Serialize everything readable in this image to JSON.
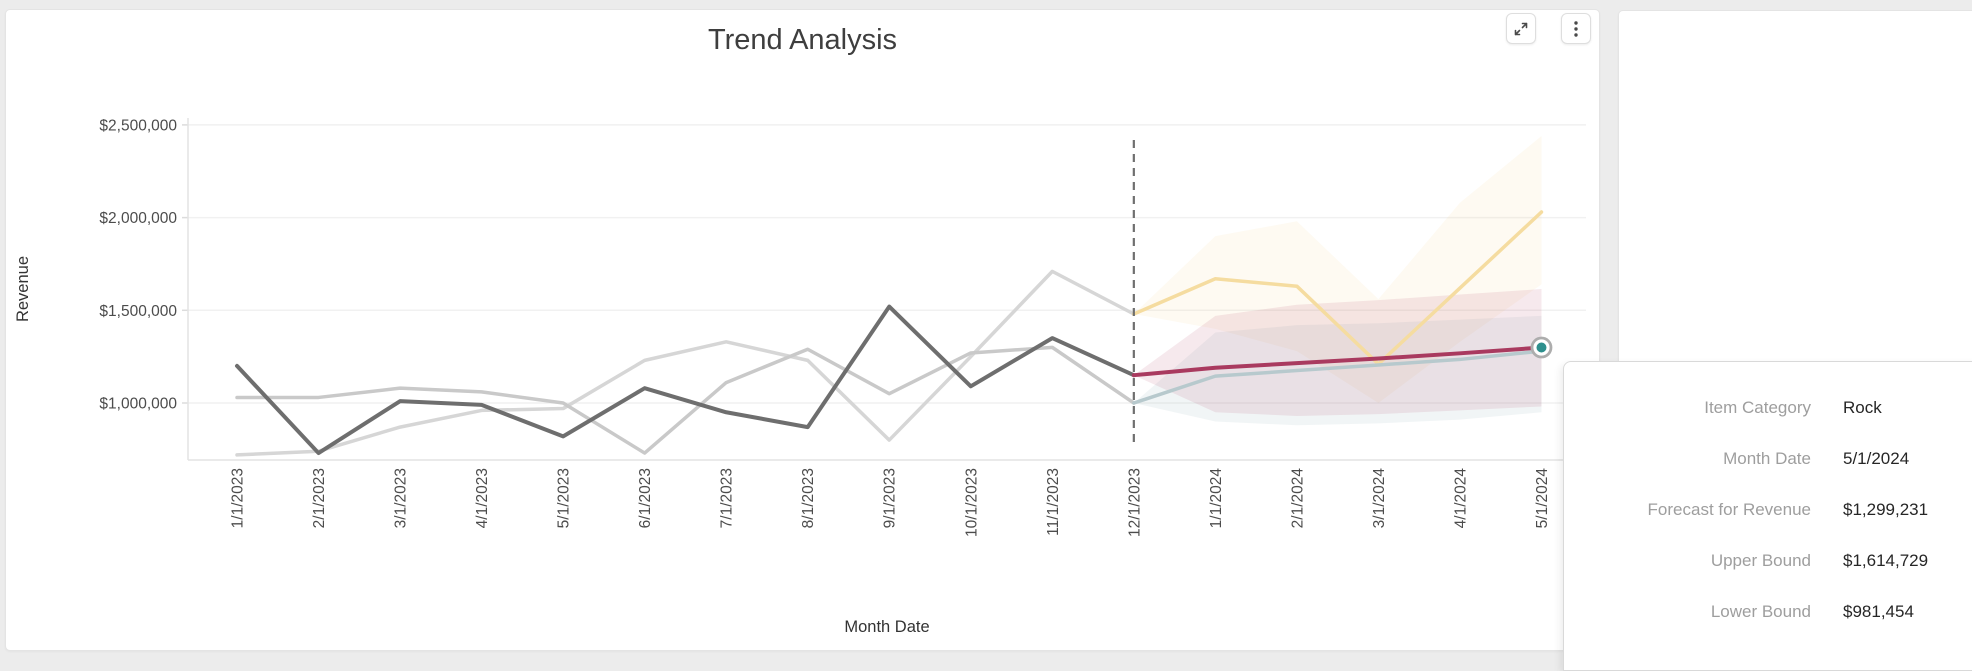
{
  "card": {
    "title": "Trend Analysis"
  },
  "chart_data": {
    "type": "line",
    "title": "Trend Analysis",
    "xlabel": "Month Date",
    "ylabel": "Revenue",
    "ylim": [
      650000,
      2550000
    ],
    "grid": "horizontal",
    "legend_position": "none",
    "x_categories": [
      "1/1/2023",
      "2/1/2023",
      "3/1/2023",
      "4/1/2023",
      "5/1/2023",
      "6/1/2023",
      "7/1/2023",
      "8/1/2023",
      "9/1/2023",
      "10/1/2023",
      "11/1/2023",
      "12/1/2023",
      "1/1/2024",
      "2/1/2024",
      "3/1/2024",
      "4/1/2024",
      "5/1/2024"
    ],
    "y_ticks": [
      {
        "value": 1000000,
        "label": "$1,000,000"
      },
      {
        "value": 1500000,
        "label": "$1,500,000"
      },
      {
        "value": 2000000,
        "label": "$2,000,000"
      },
      {
        "value": 2500000,
        "label": "$2,500,000"
      }
    ],
    "forecast_boundary": "12/1/2023",
    "divider_color": "#6F6F6F",
    "series": [
      {
        "name": "category-a-history",
        "role": "history",
        "color": "#D6D6D6",
        "width": 3.5,
        "start_index": 0,
        "values": [
          720000,
          740000,
          870000,
          960000,
          970000,
          1230000,
          1330000,
          1230000,
          800000,
          1250000,
          1710000,
          1480000
        ]
      },
      {
        "name": "category-b-history",
        "role": "history",
        "color": "#C9C9C9",
        "width": 3.5,
        "start_index": 0,
        "values": [
          1030000,
          1030000,
          1080000,
          1060000,
          1000000,
          730000,
          1110000,
          1290000,
          1050000,
          1270000,
          1300000,
          1000000
        ]
      },
      {
        "name": "rock-history",
        "role": "history",
        "color": "#6E6E6E",
        "width": 4,
        "start_index": 0,
        "values": [
          1200000,
          730000,
          1010000,
          990000,
          820000,
          1080000,
          950000,
          870000,
          1520000,
          1090000,
          1350000,
          1150000
        ]
      },
      {
        "name": "category-a-forecast",
        "role": "forecast",
        "color": "#F5DCA0",
        "width": 3.5,
        "start_index": 11,
        "values": [
          1480000,
          1670000,
          1630000,
          1210000,
          1620000,
          2030000
        ]
      },
      {
        "name": "category-b-forecast",
        "role": "forecast",
        "color": "#B7C9CD",
        "width": 3.5,
        "start_index": 11,
        "values": [
          1000000,
          1145000,
          1175000,
          1205000,
          1235000,
          1280000
        ]
      },
      {
        "name": "rock-forecast",
        "role": "forecast",
        "color": "#A93A5F",
        "width": 4,
        "start_index": 11,
        "values": [
          1150000,
          1190000,
          1215000,
          1240000,
          1268000,
          1299231
        ]
      }
    ],
    "bands": [
      {
        "name": "category-a-confidence-band",
        "color": "rgba(242,201,114,0.09)",
        "start_index": 11,
        "upper": [
          1480000,
          1900000,
          1980000,
          1560000,
          2080000,
          2440000
        ],
        "lower": [
          1480000,
          1400000,
          1280000,
          1000000,
          1330000,
          1640000
        ]
      },
      {
        "name": "category-b-confidence-band",
        "color": "rgba(150,180,185,0.13)",
        "start_index": 11,
        "upper": [
          1000000,
          1380000,
          1420000,
          1430000,
          1450000,
          1470000
        ],
        "lower": [
          1000000,
          900000,
          880000,
          890000,
          910000,
          950000
        ]
      },
      {
        "name": "rock-confidence-band",
        "color": "rgba(169,58,95,0.11)",
        "start_index": 11,
        "upper": [
          1150000,
          1470000,
          1530000,
          1555000,
          1585000,
          1614729
        ],
        "lower": [
          1150000,
          950000,
          930000,
          940000,
          960000,
          981454
        ]
      }
    ],
    "highlight_point": {
      "series": "rock-forecast",
      "x": "5/1/2024",
      "value": 1299231,
      "dot_color": "#2E8F8D",
      "ring_color": "#ADADAD"
    }
  },
  "tooltip": {
    "rows": [
      {
        "label": "Item Category",
        "value": "Rock"
      },
      {
        "label": "Month Date",
        "value": "5/1/2024"
      },
      {
        "label": "Forecast for Revenue",
        "value": "$1,299,231"
      },
      {
        "label": "Upper Bound",
        "value": "$1,614,729"
      },
      {
        "label": "Lower Bound",
        "value": "$981,454"
      }
    ]
  }
}
